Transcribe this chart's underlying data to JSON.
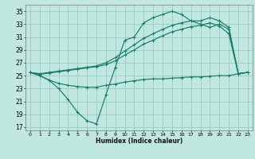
{
  "xlabel": "Humidex (Indice chaleur)",
  "background_color": "#c0e8e0",
  "grid_color": "#98ccc4",
  "line_color": "#1a7a6a",
  "xlim": [
    -0.5,
    23.5
  ],
  "ylim": [
    16.5,
    36
  ],
  "yticks": [
    17,
    19,
    21,
    23,
    25,
    27,
    29,
    31,
    33,
    35
  ],
  "xticks": [
    0,
    1,
    2,
    3,
    4,
    5,
    6,
    7,
    8,
    9,
    10,
    11,
    12,
    13,
    14,
    15,
    16,
    17,
    18,
    19,
    20,
    21,
    22,
    23
  ],
  "series": [
    {
      "x": [
        0,
        1,
        2,
        3,
        4,
        5,
        6,
        7,
        8,
        9,
        10,
        11,
        12,
        13,
        14,
        15,
        16,
        17,
        18,
        19,
        20,
        21,
        22,
        23
      ],
      "y": [
        25.5,
        25.0,
        24.3,
        23.0,
        21.3,
        19.3,
        18.0,
        17.5,
        22.0,
        26.3,
        30.5,
        31.0,
        33.2,
        34.0,
        34.5,
        35.0,
        34.5,
        33.5,
        33.0,
        32.5,
        33.0,
        32.2,
        25.3,
        25.5
      ]
    },
    {
      "x": [
        0,
        1,
        2,
        3,
        4,
        5,
        6,
        7,
        8,
        9,
        10,
        11,
        12,
        13,
        14,
        15,
        16,
        17,
        18,
        19,
        20,
        21,
        22,
        23
      ],
      "y": [
        25.5,
        25.3,
        25.5,
        25.7,
        25.9,
        26.1,
        26.3,
        26.5,
        27.0,
        27.8,
        28.8,
        29.8,
        30.8,
        31.5,
        32.2,
        32.8,
        33.2,
        33.5,
        33.5,
        34.0,
        33.5,
        32.5,
        25.3,
        25.5
      ]
    },
    {
      "x": [
        0,
        1,
        2,
        3,
        4,
        5,
        6,
        7,
        8,
        9,
        10,
        11,
        12,
        13,
        14,
        15,
        16,
        17,
        18,
        19,
        20,
        21,
        22,
        23
      ],
      "y": [
        25.5,
        25.2,
        25.4,
        25.6,
        25.8,
        26.0,
        26.2,
        26.4,
        26.7,
        27.3,
        28.2,
        29.0,
        29.9,
        30.5,
        31.2,
        31.8,
        32.2,
        32.6,
        32.8,
        33.2,
        32.7,
        31.5,
        25.3,
        25.5
      ]
    },
    {
      "x": [
        0,
        1,
        2,
        3,
        4,
        5,
        6,
        7,
        8,
        9,
        10,
        11,
        12,
        13,
        14,
        15,
        16,
        17,
        18,
        19,
        20,
        21,
        22,
        23
      ],
      "y": [
        25.5,
        25.0,
        24.3,
        23.8,
        23.5,
        23.3,
        23.2,
        23.2,
        23.5,
        23.7,
        24.0,
        24.2,
        24.4,
        24.5,
        24.5,
        24.6,
        24.7,
        24.8,
        24.8,
        24.9,
        25.0,
        25.0,
        25.3,
        25.5
      ]
    }
  ]
}
